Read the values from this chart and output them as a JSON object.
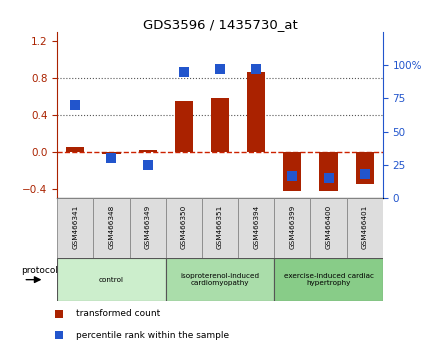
{
  "title": "GDS3596 / 1435730_at",
  "samples": [
    "GSM466341",
    "GSM466348",
    "GSM466349",
    "GSM466350",
    "GSM466351",
    "GSM466394",
    "GSM466399",
    "GSM466400",
    "GSM466401"
  ],
  "transformed_count": [
    0.05,
    -0.02,
    0.02,
    0.55,
    0.58,
    0.87,
    -0.42,
    -0.42,
    -0.35
  ],
  "percentile_rank": [
    70,
    30,
    25,
    95,
    97,
    97,
    17,
    15,
    18
  ],
  "red_color": "#aa2200",
  "blue_color": "#2255cc",
  "left_ylim": [
    -0.5,
    1.3
  ],
  "left_yticks": [
    -0.4,
    0.0,
    0.4,
    0.8,
    1.2
  ],
  "right_ylim": [
    0,
    125
  ],
  "right_yticks": [
    0,
    25,
    50,
    75,
    100
  ],
  "right_yticklabels": [
    "0",
    "25",
    "50",
    "75",
    "100%"
  ],
  "hline_y": 0.0,
  "dotted_lines": [
    0.4,
    0.8
  ],
  "groups": [
    {
      "label": "control",
      "start": 0,
      "end": 3,
      "color": "#cceecc"
    },
    {
      "label": "isoproterenol-induced\ncardiomyopathy",
      "start": 3,
      "end": 6,
      "color": "#aaddaa"
    },
    {
      "label": "exercise-induced cardiac\nhypertrophy",
      "start": 6,
      "end": 9,
      "color": "#88cc88"
    }
  ],
  "protocol_label": "protocol",
  "bar_width": 0.5,
  "marker_size": 7,
  "background_color": "#ffffff",
  "zero_line_color": "#cc2200",
  "zero_line_style": "--",
  "legend_red_label": "transformed count",
  "legend_blue_label": "percentile rank within the sample",
  "sample_box_color": "#dddddd",
  "sample_box_edge": "#888888"
}
